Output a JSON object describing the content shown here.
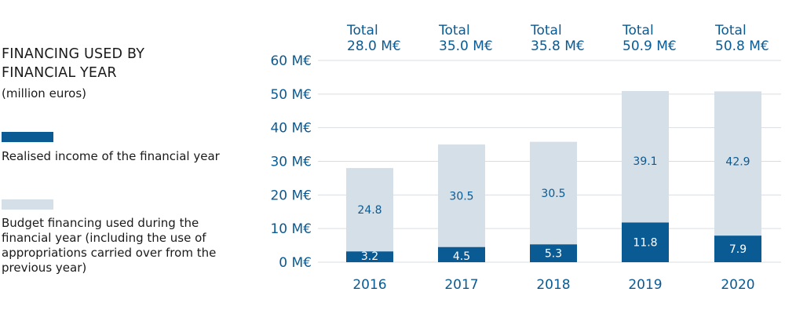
{
  "legend": {
    "title": "FINANCING USED BY FINANCIAL YEAR",
    "subtitle": "(million euros)",
    "items": [
      {
        "label": "Realised income of the financial year",
        "color": "#0a5a94"
      },
      {
        "label": "Budget financing used during the financial year (including the use of appropriations carried over from the previous year)",
        "color": "#d5dfe7"
      }
    ]
  },
  "colors": {
    "text_blue": "#0a5a94",
    "dark_bar": "#0a5a94",
    "light_bar": "#d5dfe7",
    "white": "#ffffff"
  },
  "chart_data": {
    "type": "bar",
    "stacked": true,
    "categories": [
      "2016",
      "2017",
      "2018",
      "2019",
      "2020"
    ],
    "series": [
      {
        "name": "Realised income of the financial year",
        "values": [
          3.2,
          4.5,
          5.3,
          11.8,
          7.9
        ]
      },
      {
        "name": "Budget financing used during the financial year (including the use of appropriations carried over from the previous year)",
        "values": [
          24.8,
          30.5,
          30.5,
          39.1,
          42.9
        ]
      }
    ],
    "totals": [
      {
        "line1": "Total",
        "line2": "28.0 M€"
      },
      {
        "line1": "Total",
        "line2": "35.0 M€"
      },
      {
        "line1": "Total",
        "line2": "35.8 M€"
      },
      {
        "line1": "Total",
        "line2": "50.9 M€"
      },
      {
        "line1": "Total",
        "line2": "50.8 M€"
      }
    ],
    "y_ticks": [
      "0 M€",
      "10 M€",
      "20 M€",
      "30 M€",
      "40 M€",
      "50 M€",
      "60 M€"
    ],
    "ylim": [
      0,
      60
    ],
    "grid": true,
    "legend_position": "left"
  }
}
